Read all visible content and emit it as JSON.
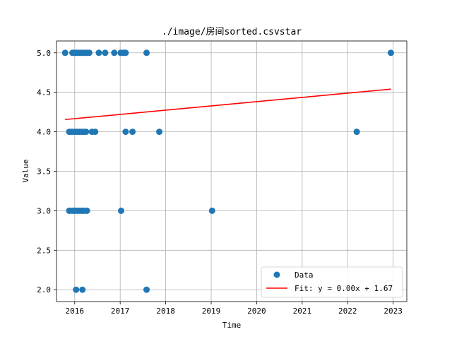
{
  "chart_data": {
    "type": "scatter",
    "title": "./image/房间sorted.csvstar",
    "xlabel": "Time",
    "ylabel": "Value",
    "xlim": [
      2015.6,
      2023.3
    ],
    "ylim": [
      1.85,
      5.15
    ],
    "x_ticks": [
      2016,
      2017,
      2018,
      2019,
      2020,
      2021,
      2022,
      2023
    ],
    "x_tick_labels": [
      "2016",
      "2017",
      "2018",
      "2019",
      "2020",
      "2021",
      "2022",
      "2023"
    ],
    "y_ticks": [
      2.0,
      2.5,
      3.0,
      3.5,
      4.0,
      4.5,
      5.0
    ],
    "y_tick_labels": [
      "2.0",
      "2.5",
      "3.0",
      "3.5",
      "4.0",
      "4.5",
      "5.0"
    ],
    "grid": true,
    "legend_position": "lower-right",
    "colors": {
      "data": "#1f77b4",
      "fit": "#ff0000"
    },
    "series": [
      {
        "name": "Data",
        "kind": "scatter",
        "points": [
          [
            2015.79,
            5.0
          ],
          [
            2015.95,
            5.0
          ],
          [
            2016.0,
            5.0
          ],
          [
            2016.04,
            5.0
          ],
          [
            2016.08,
            5.0
          ],
          [
            2016.12,
            5.0
          ],
          [
            2016.16,
            5.0
          ],
          [
            2016.2,
            5.0
          ],
          [
            2016.24,
            5.0
          ],
          [
            2016.28,
            5.0
          ],
          [
            2016.32,
            5.0
          ],
          [
            2016.53,
            5.0
          ],
          [
            2016.67,
            5.0
          ],
          [
            2016.87,
            5.0
          ],
          [
            2017.01,
            5.0
          ],
          [
            2017.07,
            5.0
          ],
          [
            2017.1,
            5.0
          ],
          [
            2017.12,
            5.0
          ],
          [
            2017.58,
            5.0
          ],
          [
            2022.95,
            5.0
          ],
          [
            2015.88,
            4.0
          ],
          [
            2015.94,
            4.0
          ],
          [
            2016.0,
            4.0
          ],
          [
            2016.05,
            4.0
          ],
          [
            2016.1,
            4.0
          ],
          [
            2016.15,
            4.0
          ],
          [
            2016.2,
            4.0
          ],
          [
            2016.25,
            4.0
          ],
          [
            2016.38,
            4.0
          ],
          [
            2016.45,
            4.0
          ],
          [
            2017.12,
            4.0
          ],
          [
            2017.27,
            4.0
          ],
          [
            2017.86,
            4.0
          ],
          [
            2022.2,
            4.0
          ],
          [
            2015.88,
            3.0
          ],
          [
            2015.95,
            3.0
          ],
          [
            2016.0,
            3.0
          ],
          [
            2016.05,
            3.0
          ],
          [
            2016.1,
            3.0
          ],
          [
            2016.15,
            3.0
          ],
          [
            2016.2,
            3.0
          ],
          [
            2016.27,
            3.0
          ],
          [
            2017.02,
            3.0
          ],
          [
            2019.02,
            3.0
          ],
          [
            2016.03,
            2.0
          ],
          [
            2016.17,
            2.0
          ],
          [
            2017.58,
            2.0
          ]
        ]
      },
      {
        "name": "Fit: y = 0.00x + 1.67",
        "kind": "line",
        "points": [
          [
            2015.79,
            4.155
          ],
          [
            2022.95,
            4.54
          ]
        ]
      }
    ]
  }
}
